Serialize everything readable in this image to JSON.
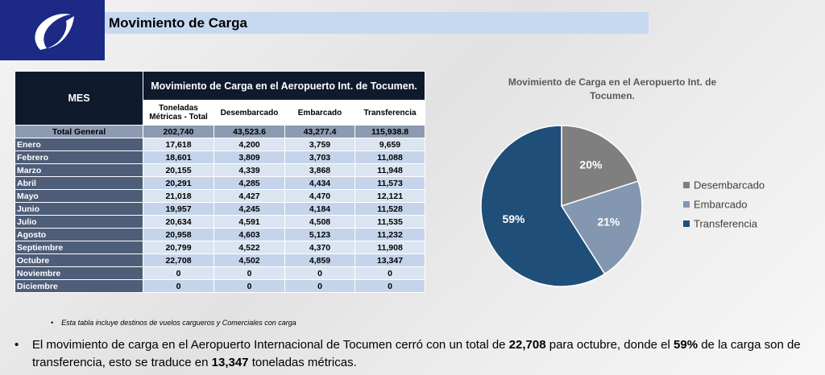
{
  "header": {
    "title": "Movimiento de Carga"
  },
  "table": {
    "title": "Movimiento de Carga en el Aeropuerto Int. de Tocumen.",
    "mes_header": "MES",
    "columns": [
      "Toneladas Métricas - Total",
      "Desembarcado",
      "Embarcado",
      "Transferencia"
    ],
    "rows": [
      [
        "Total General",
        "202,740",
        "43,523.6",
        "43,277.4",
        "115,938.8"
      ],
      [
        "Enero",
        "17,618",
        "4,200",
        "3,759",
        "9,659"
      ],
      [
        "Febrero",
        "18,601",
        "3,809",
        "3,703",
        "11,088"
      ],
      [
        "Marzo",
        "20,155",
        "4,339",
        "3,868",
        "11,948"
      ],
      [
        "Abril",
        "20,291",
        "4,285",
        "4,434",
        "11,573"
      ],
      [
        "Mayo",
        "21,018",
        "4,427",
        "4,470",
        "12,121"
      ],
      [
        "Junio",
        "19,957",
        "4,245",
        "4,184",
        "11,528"
      ],
      [
        "Julio",
        "20,634",
        "4,591",
        "4,508",
        "11,535"
      ],
      [
        "Agosto",
        "20,958",
        "4,603",
        "5,123",
        "11,232"
      ],
      [
        "Septiembre",
        "20,799",
        "4,522",
        "4,370",
        "11,908"
      ],
      [
        "Octubre",
        "22,708",
        "4,502",
        "4,859",
        "13,347"
      ],
      [
        "Noviembre",
        "0",
        "0",
        "0",
        "0"
      ],
      [
        "Diciembre",
        "0",
        "0",
        "0",
        "0"
      ]
    ]
  },
  "chart_data": {
    "type": "pie",
    "title": "Movimiento de Carga en el Aeropuerto Int. de Tocumen.",
    "categories": [
      "Desembarcado",
      "Embarcado",
      "Transferencia"
    ],
    "values": [
      20,
      21,
      59
    ],
    "value_labels": [
      "20%",
      "21%",
      "59%"
    ],
    "colors": [
      "#7f7f7f",
      "#8497b0",
      "#1f4e79"
    ]
  },
  "footnote": "Esta tabla incluye destinos de vuelos cargueros y Comerciales con carga",
  "summary": [
    "El movimiento de carga en el Aeropuerto Internacional de Tocumen cerró con un total de ",
    "22,708",
    " para octubre, donde el ",
    "59%",
    " de la carga son de transferencia, esto se traduce en ",
    "13,347",
    " toneladas métricas."
  ]
}
